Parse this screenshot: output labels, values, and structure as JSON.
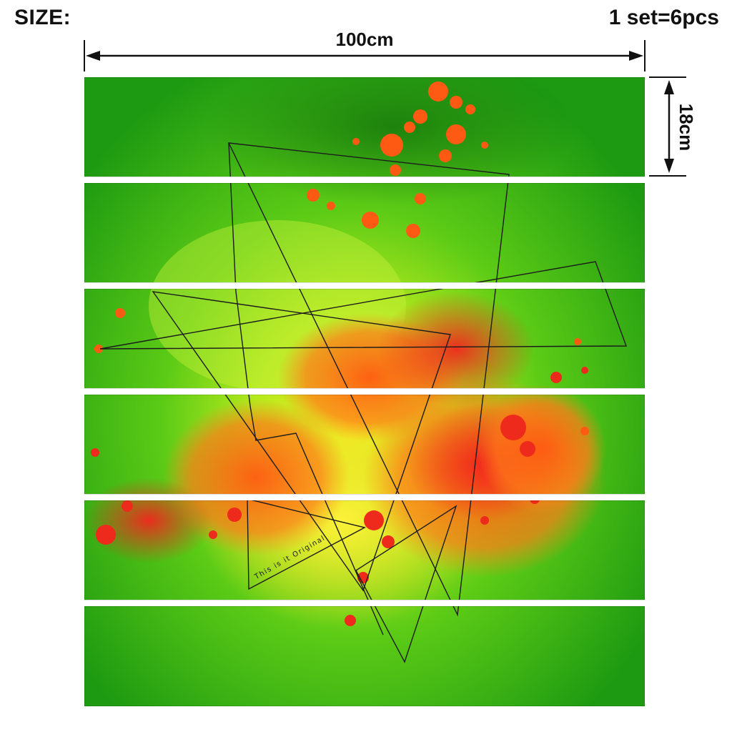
{
  "header": {
    "size_label": "SIZE:",
    "set_label": "1 set=6pcs"
  },
  "dimensions": {
    "width_label": "100cm",
    "height_label": "18cm"
  },
  "artwork": {
    "panel_count": 6,
    "motto": "This is it Original",
    "colors": {
      "background_green": "#1f9e12",
      "light_green": "#a6e61a",
      "orange": "#ff6a14",
      "red": "#ef2a1e",
      "yellow": "#f1e322",
      "line": "#1c1c1c"
    }
  }
}
